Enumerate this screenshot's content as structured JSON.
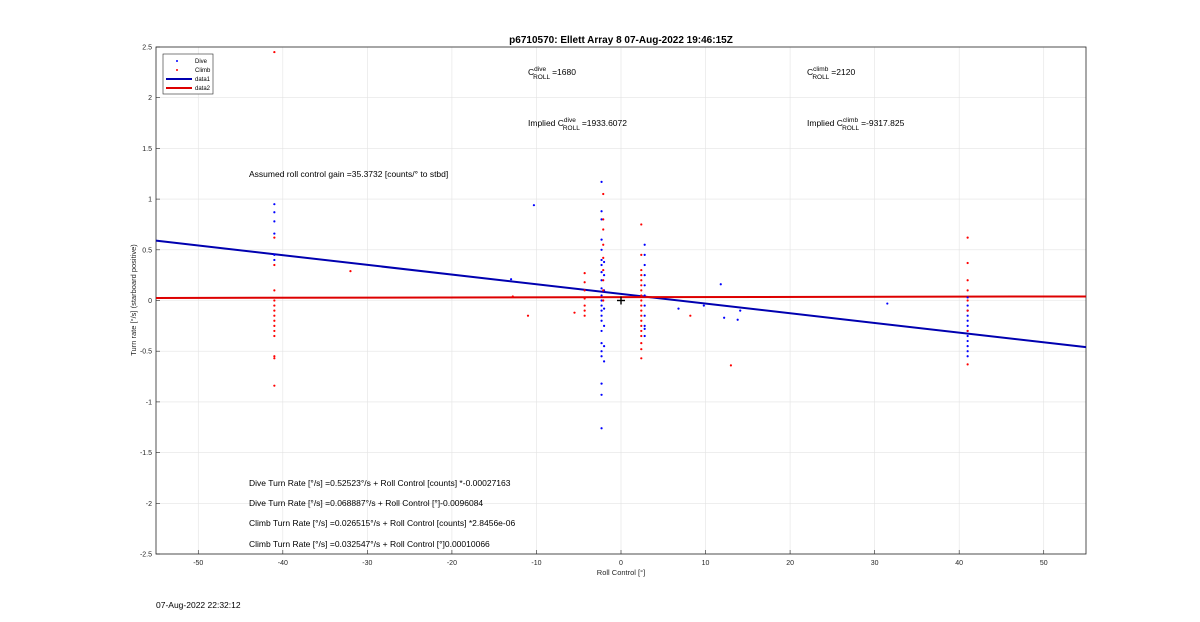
{
  "chart_data": {
    "type": "scatter",
    "title": "p6710570: Ellett Array 8 07-Aug-2022 19:46:15Z",
    "xlabel": "Roll Control [°]",
    "ylabel": "Turn rate [°/s] (starboard positive)",
    "xlim": [
      -55,
      55
    ],
    "ylim": [
      -2.5,
      2.5
    ],
    "xticks": [
      -50,
      -40,
      -30,
      -20,
      -10,
      0,
      10,
      20,
      30,
      40,
      50
    ],
    "yticks": [
      -2.5,
      -2,
      -1.5,
      -1,
      -0.5,
      0,
      0.5,
      1,
      1.5,
      2,
      2.5
    ],
    "grid": true,
    "legend_position": "top-left",
    "legend": [
      {
        "label": "Dive",
        "kind": "marker",
        "color": "#0000ff"
      },
      {
        "label": "Climb",
        "kind": "marker",
        "color": "#ff0000"
      },
      {
        "label": "data1",
        "kind": "line",
        "color": "#0000b0"
      },
      {
        "label": "data2",
        "kind": "line",
        "color": "#dd0000"
      }
    ],
    "series": [
      {
        "name": "Dive",
        "color": "#0000ff",
        "points": [
          [
            -41,
            0.95
          ],
          [
            -41,
            0.87
          ],
          [
            -41,
            0.78
          ],
          [
            -41,
            0.66
          ],
          [
            -41,
            0.45
          ],
          [
            -41,
            0.4
          ],
          [
            -2.3,
            1.17
          ],
          [
            -2.3,
            0.88
          ],
          [
            -2.3,
            0.8
          ],
          [
            -2.3,
            0.6
          ],
          [
            -2.3,
            0.5
          ],
          [
            -2.3,
            0.4
          ],
          [
            -2.3,
            0.35
          ],
          [
            -2.3,
            0.28
          ],
          [
            -2.3,
            0.2
          ],
          [
            -2.3,
            0.12
          ],
          [
            -2.3,
            0.05
          ],
          [
            -2.3,
            0.0
          ],
          [
            -2.3,
            -0.05
          ],
          [
            -2.3,
            -0.1
          ],
          [
            -2.3,
            -0.15
          ],
          [
            -2.3,
            -0.2
          ],
          [
            -2.3,
            -0.3
          ],
          [
            -2.3,
            -0.42
          ],
          [
            -2.3,
            -0.5
          ],
          [
            -2.3,
            -0.55
          ],
          [
            -2.3,
            -0.82
          ],
          [
            -2.3,
            -0.93
          ],
          [
            -2.3,
            -1.26
          ],
          [
            -2.0,
            0.38
          ],
          [
            -2.0,
            0.25
          ],
          [
            -2.0,
            0.1
          ],
          [
            -2.0,
            -0.08
          ],
          [
            -2.0,
            -0.25
          ],
          [
            -2.0,
            -0.45
          ],
          [
            -2.0,
            -0.6
          ],
          [
            2.8,
            0.55
          ],
          [
            2.8,
            0.45
          ],
          [
            2.8,
            0.35
          ],
          [
            2.8,
            0.25
          ],
          [
            2.8,
            0.15
          ],
          [
            2.8,
            0.05
          ],
          [
            2.8,
            -0.05
          ],
          [
            2.8,
            -0.15
          ],
          [
            2.8,
            -0.25
          ],
          [
            2.8,
            -0.28
          ],
          [
            2.8,
            -0.35
          ],
          [
            -10.3,
            0.94
          ],
          [
            -13,
            0.21
          ],
          [
            6.8,
            -0.08
          ],
          [
            9.8,
            -0.05
          ],
          [
            11.8,
            0.16
          ],
          [
            12.2,
            -0.17
          ],
          [
            13.8,
            -0.19
          ],
          [
            14.1,
            -0.1
          ],
          [
            31.5,
            -0.03
          ],
          [
            41,
            0.03
          ],
          [
            41,
            -0.05
          ],
          [
            41,
            -0.1
          ],
          [
            41,
            -0.15
          ],
          [
            41,
            -0.2
          ],
          [
            41,
            -0.25
          ],
          [
            41,
            -0.3
          ],
          [
            41,
            -0.35
          ],
          [
            41,
            -0.4
          ],
          [
            41,
            -0.45
          ],
          [
            41,
            -0.5
          ],
          [
            41,
            -0.55
          ]
        ]
      },
      {
        "name": "Climb",
        "color": "#ff0000",
        "points": [
          [
            -41,
            2.45
          ],
          [
            -41,
            0.62
          ],
          [
            -41,
            0.35
          ],
          [
            -41,
            0.1
          ],
          [
            -41,
            0.0
          ],
          [
            -41,
            -0.05
          ],
          [
            -41,
            -0.1
          ],
          [
            -41,
            -0.15
          ],
          [
            -41,
            -0.2
          ],
          [
            -41,
            -0.25
          ],
          [
            -41,
            -0.3
          ],
          [
            -41,
            -0.35
          ],
          [
            -41,
            -0.55
          ],
          [
            -41,
            -0.57
          ],
          [
            -41,
            -0.84
          ],
          [
            -32,
            0.29
          ],
          [
            -12.8,
            0.04
          ],
          [
            -11,
            -0.15
          ],
          [
            -5.5,
            -0.12
          ],
          [
            -4.3,
            0.27
          ],
          [
            -4.3,
            0.18
          ],
          [
            -4.3,
            0.1
          ],
          [
            -4.3,
            0.02
          ],
          [
            -4.3,
            -0.05
          ],
          [
            -4.3,
            -0.1
          ],
          [
            -4.3,
            -0.15
          ],
          [
            -2.1,
            1.05
          ],
          [
            -2.1,
            0.8
          ],
          [
            -2.1,
            0.7
          ],
          [
            -2.1,
            0.55
          ],
          [
            -2.1,
            0.42
          ],
          [
            -2.1,
            0.3
          ],
          [
            -2.1,
            0.2
          ],
          [
            -2.1,
            0.1
          ],
          [
            -2.1,
            0.0
          ],
          [
            2.4,
            0.75
          ],
          [
            2.4,
            0.45
          ],
          [
            2.4,
            0.3
          ],
          [
            2.4,
            0.25
          ],
          [
            2.4,
            0.2
          ],
          [
            2.4,
            0.15
          ],
          [
            2.4,
            0.1
          ],
          [
            2.4,
            0.05
          ],
          [
            2.4,
            0.0
          ],
          [
            2.4,
            -0.05
          ],
          [
            2.4,
            -0.1
          ],
          [
            2.4,
            -0.15
          ],
          [
            2.4,
            -0.2
          ],
          [
            2.4,
            -0.25
          ],
          [
            2.4,
            -0.3
          ],
          [
            2.4,
            -0.35
          ],
          [
            2.4,
            -0.42
          ],
          [
            2.4,
            -0.48
          ],
          [
            2.4,
            -0.57
          ],
          [
            8.2,
            -0.15
          ],
          [
            13,
            -0.64
          ],
          [
            41,
            0.62
          ],
          [
            41,
            0.37
          ],
          [
            41,
            0.2
          ],
          [
            41,
            0.1
          ],
          [
            41,
            0.0
          ],
          [
            41,
            -0.1
          ],
          [
            41,
            -0.3
          ],
          [
            41,
            -0.63
          ]
        ]
      }
    ],
    "lines": [
      {
        "name": "data1",
        "color": "#0000b0",
        "x": [
          -55,
          55
        ],
        "y": [
          0.59,
          -0.46
        ]
      },
      {
        "name": "data2",
        "color": "#dd0000",
        "x": [
          -55,
          55
        ],
        "y": [
          0.025,
          0.04
        ]
      }
    ],
    "marker": {
      "x": 0,
      "y": 0,
      "symbol": "+"
    },
    "annotations": {
      "cdive": {
        "prefix": "C",
        "sup": "dive",
        "sub": "ROLL",
        "value": "=1680"
      },
      "cclimb": {
        "prefix": "C",
        "sup": "climb",
        "sub": "ROLL",
        "value": "=2120"
      },
      "implied_dive": {
        "prefix": "Implied C",
        "sup": "dive",
        "sub": "ROLL",
        "value": "=1933.6072"
      },
      "implied_climb": {
        "prefix": "Implied C",
        "sup": "climb",
        "sub": "ROLL",
        "value": "=-9317.825"
      },
      "gain": "Assumed roll control gain =35.3732 [counts/° to stbd]",
      "eq1": "Dive Turn Rate [°/s] =0.52523°/s + Roll Control [counts] *-0.00027163",
      "eq2": "Dive Turn Rate [°/s] =0.068887°/s + Roll Control [°]-0.0096084",
      "eq3": "Climb Turn Rate [°/s] =0.026515°/s + Roll Control [counts] *2.8456e-06",
      "eq4": "Climb Turn Rate [°/s] =0.032547°/s + Roll Control [°]0.00010066"
    }
  },
  "footer": {
    "timestamp": "07-Aug-2022 22:32:12"
  }
}
